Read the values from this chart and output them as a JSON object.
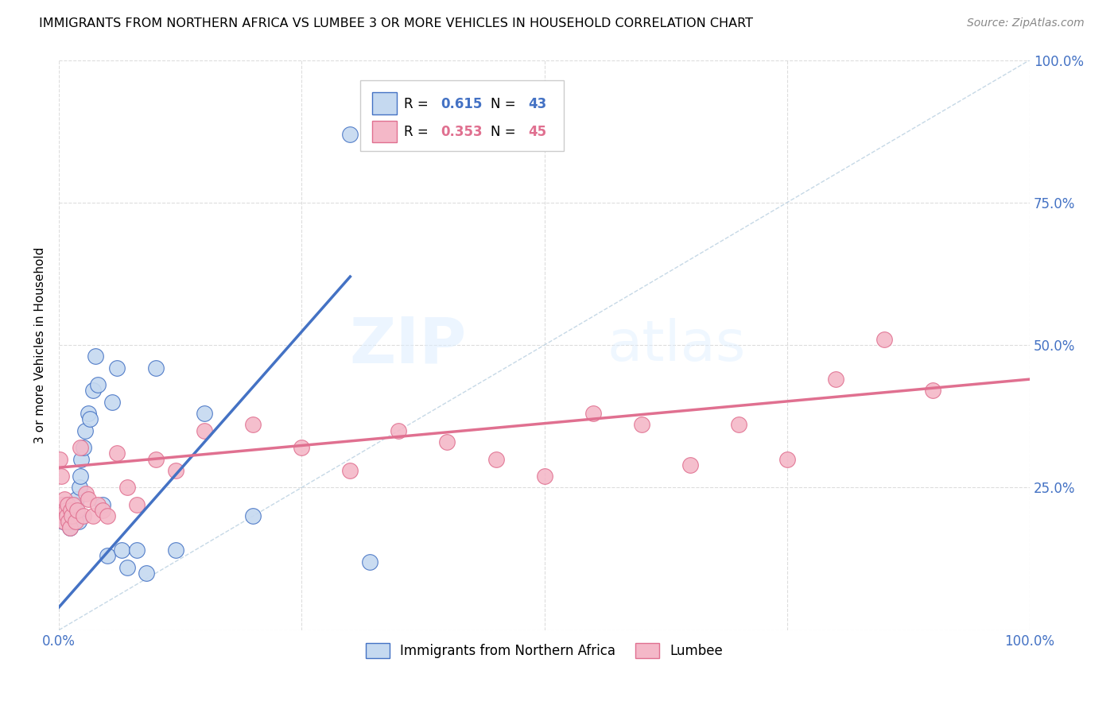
{
  "title": "IMMIGRANTS FROM NORTHERN AFRICA VS LUMBEE 3 OR MORE VEHICLES IN HOUSEHOLD CORRELATION CHART",
  "source": "Source: ZipAtlas.com",
  "ylabel": "3 or more Vehicles in Household",
  "xlim": [
    0.0,
    1.0
  ],
  "ylim": [
    0.0,
    1.0
  ],
  "blue_R": 0.615,
  "blue_N": 43,
  "pink_R": 0.353,
  "pink_N": 45,
  "legend_label_blue": "Immigrants from Northern Africa",
  "legend_label_pink": "Lumbee",
  "blue_color": "#c5d9f0",
  "blue_line_color": "#4472C4",
  "pink_color": "#f4b8c8",
  "pink_line_color": "#E07090",
  "diagonal_color": "#b8cfe0",
  "watermark_zip": "ZIP",
  "watermark_atlas": "atlas",
  "blue_scatter_x": [
    0.002,
    0.003,
    0.004,
    0.005,
    0.006,
    0.007,
    0.008,
    0.009,
    0.01,
    0.011,
    0.012,
    0.013,
    0.014,
    0.015,
    0.016,
    0.017,
    0.018,
    0.019,
    0.02,
    0.021,
    0.022,
    0.023,
    0.025,
    0.027,
    0.03,
    0.032,
    0.035,
    0.038,
    0.04,
    0.045,
    0.05,
    0.055,
    0.06,
    0.065,
    0.07,
    0.08,
    0.09,
    0.1,
    0.12,
    0.15,
    0.2,
    0.3,
    0.32
  ],
  "blue_scatter_y": [
    0.2,
    0.21,
    0.19,
    0.22,
    0.2,
    0.21,
    0.22,
    0.2,
    0.19,
    0.18,
    0.21,
    0.22,
    0.2,
    0.19,
    0.21,
    0.22,
    0.23,
    0.2,
    0.19,
    0.25,
    0.27,
    0.3,
    0.32,
    0.35,
    0.38,
    0.37,
    0.42,
    0.48,
    0.43,
    0.22,
    0.13,
    0.4,
    0.46,
    0.14,
    0.11,
    0.14,
    0.1,
    0.46,
    0.14,
    0.38,
    0.2,
    0.87,
    0.12
  ],
  "pink_scatter_x": [
    0.001,
    0.002,
    0.003,
    0.004,
    0.005,
    0.006,
    0.007,
    0.008,
    0.009,
    0.01,
    0.011,
    0.012,
    0.013,
    0.015,
    0.017,
    0.019,
    0.022,
    0.025,
    0.028,
    0.03,
    0.035,
    0.04,
    0.045,
    0.05,
    0.06,
    0.07,
    0.08,
    0.1,
    0.12,
    0.15,
    0.2,
    0.25,
    0.3,
    0.35,
    0.4,
    0.45,
    0.5,
    0.55,
    0.6,
    0.65,
    0.7,
    0.75,
    0.8,
    0.85,
    0.9
  ],
  "pink_scatter_y": [
    0.3,
    0.27,
    0.22,
    0.2,
    0.19,
    0.23,
    0.21,
    0.2,
    0.22,
    0.19,
    0.18,
    0.21,
    0.2,
    0.22,
    0.19,
    0.21,
    0.32,
    0.2,
    0.24,
    0.23,
    0.2,
    0.22,
    0.21,
    0.2,
    0.31,
    0.25,
    0.22,
    0.3,
    0.28,
    0.35,
    0.36,
    0.32,
    0.28,
    0.35,
    0.33,
    0.3,
    0.27,
    0.38,
    0.36,
    0.29,
    0.36,
    0.3,
    0.44,
    0.51,
    0.42
  ],
  "blue_line_x": [
    0.0,
    0.3
  ],
  "blue_line_y": [
    0.04,
    0.62
  ],
  "pink_line_x": [
    0.0,
    1.0
  ],
  "pink_line_y": [
    0.285,
    0.44
  ]
}
